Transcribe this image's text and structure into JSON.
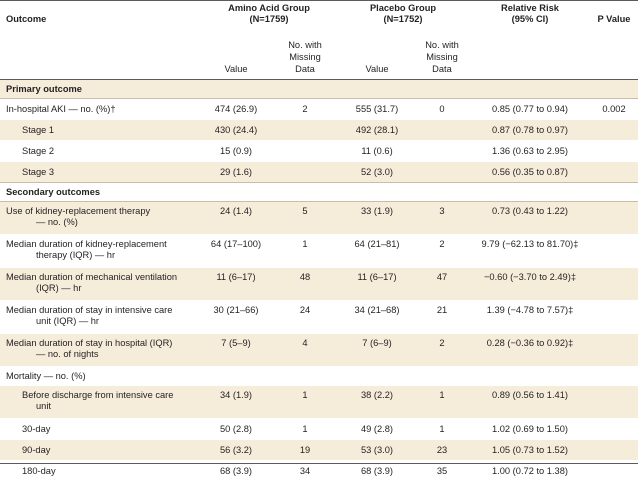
{
  "header": {
    "outcome": "Outcome",
    "amino_group": "Amino Acid Group",
    "amino_n": "(N=1759)",
    "placebo_group": "Placebo Group",
    "placebo_n": "(N=1752)",
    "relative_risk": "Relative Risk",
    "ci": "(95% CI)",
    "p_value": "P Value",
    "value": "Value",
    "missing_1": "No. with",
    "missing_2": "Missing",
    "missing_3": "Data"
  },
  "rows": [
    {
      "label": "Primary outcome"
    },
    {
      "label": "In-hospital AKI — no. (%)†",
      "aa": "474 (26.9)",
      "aam": "2",
      "pv": "555 (31.7)",
      "pvm": "0",
      "rr": "0.85 (0.77 to 0.94)",
      "p": "0.002"
    },
    {
      "label": "Stage 1",
      "aa": "430 (24.4)",
      "aam": "",
      "pv": "492 (28.1)",
      "pvm": "",
      "rr": "0.87 (0.78 to 0.97)",
      "p": ""
    },
    {
      "label": "Stage 2",
      "aa": "15 (0.9)",
      "aam": "",
      "pv": "11 (0.6)",
      "pvm": "",
      "rr": "1.36 (0.63 to 2.95)",
      "p": ""
    },
    {
      "label": "Stage 3",
      "aa": "29 (1.6)",
      "aam": "",
      "pv": "52 (3.0)",
      "pvm": "",
      "rr": "0.56 (0.35 to 0.87)",
      "p": ""
    },
    {
      "label": "Secondary outcomes"
    },
    {
      "label_1": "Use of kidney-replacement therapy",
      "label_2": "— no. (%)",
      "aa": "24 (1.4)",
      "aam": "5",
      "pv": "33 (1.9)",
      "pvm": "3",
      "rr": "0.73 (0.43 to 1.22)",
      "p": ""
    },
    {
      "label_1": "Median duration of kidney-replacement",
      "label_2": "therapy (IQR) — hr",
      "aa": "64 (17–100)",
      "aam": "1",
      "pv": "64 (21–81)",
      "pvm": "2",
      "rr": "9.79 (−62.13 to 81.70)‡",
      "p": ""
    },
    {
      "label_1": "Median duration of mechanical ventilation",
      "label_2": "(IQR) — hr",
      "aa": "11 (6–17)",
      "aam": "48",
      "pv": "11 (6–17)",
      "pvm": "47",
      "rr": "−0.60 (−3.70 to 2.49)‡",
      "p": ""
    },
    {
      "label_1": "Median duration of stay in intensive care",
      "label_2": "unit (IQR) — hr",
      "aa": "30 (21–66)",
      "aam": "24",
      "pv": "34 (21–68)",
      "pvm": "21",
      "rr": "1.39 (−4.78 to 7.57)‡",
      "p": ""
    },
    {
      "label_1": "Median duration of stay in hospital (IQR)",
      "label_2": "— no. of nights",
      "aa": "7 (5–9)",
      "aam": "4",
      "pv": "7 (6–9)",
      "pvm": "2",
      "rr": "0.28 (−0.36 to 0.92)‡",
      "p": ""
    },
    {
      "label": "Mortality — no. (%)"
    },
    {
      "label_1": "Before discharge from intensive care",
      "label_2": "unit",
      "aa": "34 (1.9)",
      "aam": "1",
      "pv": "38 (2.2)",
      "pvm": "1",
      "rr": "0.89 (0.56 to 1.41)",
      "p": ""
    },
    {
      "label": "30-day",
      "aa": "50 (2.8)",
      "aam": "1",
      "pv": "49 (2.8)",
      "pvm": "1",
      "rr": "1.02 (0.69 to 1.50)",
      "p": ""
    },
    {
      "label": "90-day",
      "aa": "56 (3.2)",
      "aam": "19",
      "pv": "53 (3.0)",
      "pvm": "23",
      "rr": "1.05 (0.73 to 1.52)",
      "p": ""
    },
    {
      "label": "180-day",
      "aa": "68 (3.9)",
      "aam": "34",
      "pv": "68 (3.9)",
      "pvm": "35",
      "rr": "1.00 (0.72 to 1.38)",
      "p": ""
    }
  ],
  "colors": {
    "shade": "#f6ecda",
    "rule": "#5b5b5b",
    "text": "#231f20"
  }
}
